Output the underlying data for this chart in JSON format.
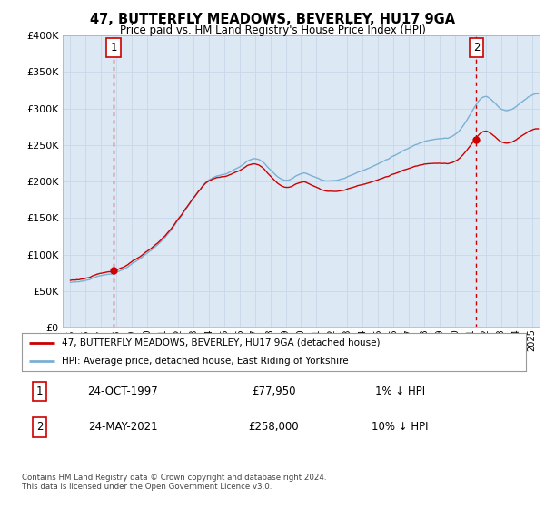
{
  "title": "47, BUTTERFLY MEADOWS, BEVERLEY, HU17 9GA",
  "subtitle": "Price paid vs. HM Land Registry's House Price Index (HPI)",
  "ylabel_ticks": [
    "£0",
    "£50K",
    "£100K",
    "£150K",
    "£200K",
    "£250K",
    "£300K",
    "£350K",
    "£400K"
  ],
  "ylim": [
    0,
    400000
  ],
  "xlim_start": 1994.5,
  "xlim_end": 2025.5,
  "sale1_date": 1997.82,
  "sale1_price": 77950,
  "sale1_label": "1",
  "sale2_date": 2021.39,
  "sale2_price": 258000,
  "sale2_label": "2",
  "line_color_house": "#cc0000",
  "line_color_hpi": "#7bafd4",
  "dot_color": "#cc0000",
  "bg_chart": "#dce9f5",
  "legend_house": "47, BUTTERFLY MEADOWS, BEVERLEY, HU17 9GA (detached house)",
  "legend_hpi": "HPI: Average price, detached house, East Riding of Yorkshire",
  "table_row1_num": "1",
  "table_row1_date": "24-OCT-1997",
  "table_row1_price": "£77,950",
  "table_row1_hpi": "1% ↓ HPI",
  "table_row2_num": "2",
  "table_row2_date": "24-MAY-2021",
  "table_row2_price": "£258,000",
  "table_row2_hpi": "10% ↓ HPI",
  "footer": "Contains HM Land Registry data © Crown copyright and database right 2024.\nThis data is licensed under the Open Government Licence v3.0.",
  "background_color": "#ffffff",
  "grid_color": "#c8d8e8"
}
